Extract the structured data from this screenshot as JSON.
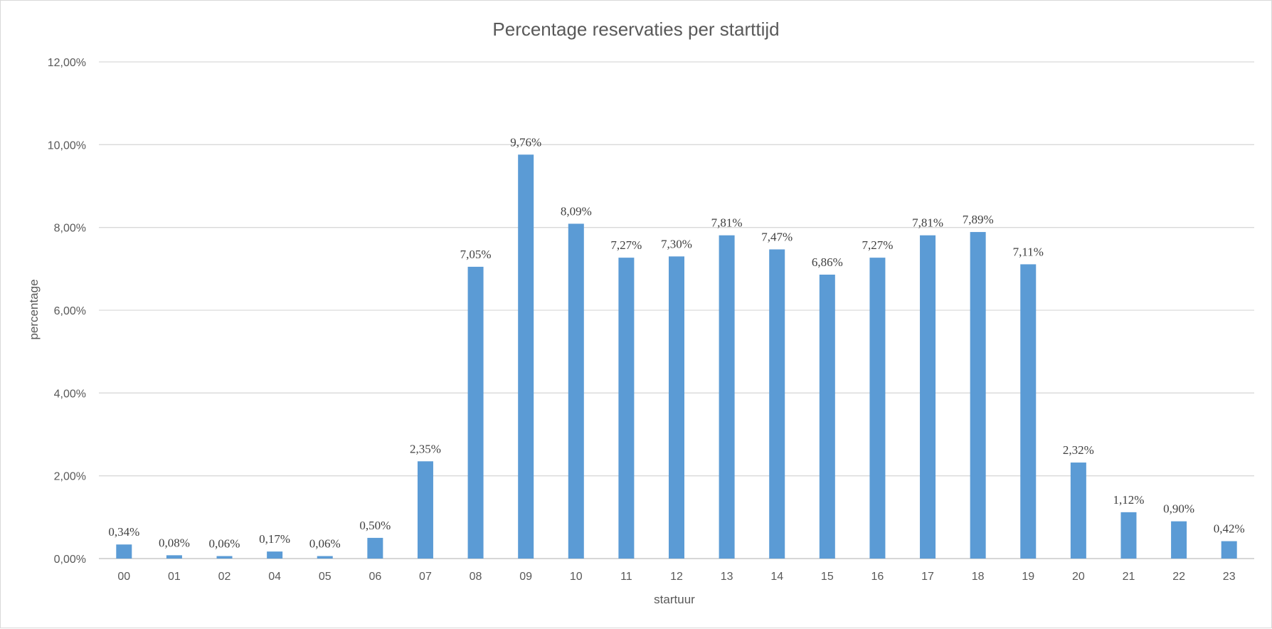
{
  "chart_data": {
    "type": "bar",
    "title": "Percentage reservaties per starttijd",
    "xlabel": "startuur",
    "ylabel": "percentage",
    "ylim": [
      0,
      12
    ],
    "yticks": [
      "0,00%",
      "2,00%",
      "4,00%",
      "6,00%",
      "8,00%",
      "10,00%",
      "12,00%"
    ],
    "categories": [
      "00",
      "01",
      "02",
      "04",
      "05",
      "06",
      "07",
      "08",
      "09",
      "10",
      "11",
      "12",
      "13",
      "14",
      "15",
      "16",
      "17",
      "18",
      "19",
      "20",
      "21",
      "22",
      "23"
    ],
    "values": [
      0.34,
      0.08,
      0.06,
      0.17,
      0.06,
      0.5,
      2.35,
      7.05,
      9.76,
      8.09,
      7.27,
      7.3,
      7.81,
      7.47,
      6.86,
      7.27,
      7.81,
      7.89,
      7.11,
      2.32,
      1.12,
      0.9,
      0.42
    ],
    "data_labels": [
      "0,34%",
      "0,08%",
      "0,06%",
      "0,17%",
      "0,06%",
      "0,50%",
      "2,35%",
      "7,05%",
      "9,76%",
      "8,09%",
      "7,27%",
      "7,30%",
      "7,81%",
      "7,47%",
      "6,86%",
      "7,27%",
      "7,81%",
      "7,89%",
      "7,11%",
      "2,32%",
      "1,12%",
      "0,90%",
      "0,42%"
    ],
    "grid": true,
    "legend": "none",
    "bar_color": "#5b9bd5"
  }
}
